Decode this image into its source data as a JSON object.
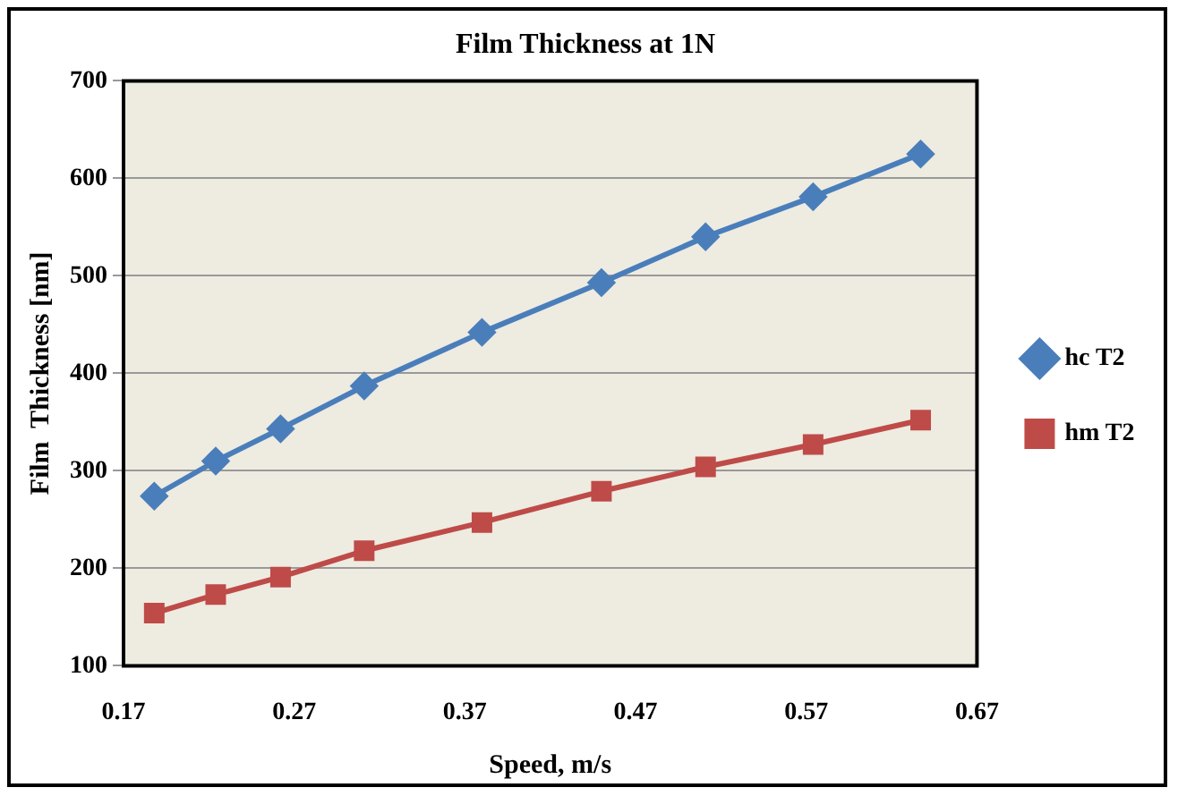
{
  "chart_data": {
    "type": "line",
    "title": "Film Thickness at 1N",
    "xlabel": "Speed, m/s",
    "ylabel": "Film  Thickness [nm]",
    "x": [
      0.188,
      0.224,
      0.262,
      0.311,
      0.38,
      0.45,
      0.511,
      0.574,
      0.637
    ],
    "series": [
      {
        "name": "hc T2",
        "color": "#4a7ebb",
        "marker": "diamond",
        "values": [
          274,
          310,
          343,
          387,
          442,
          493,
          540,
          581,
          625
        ]
      },
      {
        "name": "hm T2",
        "color": "#be4b48",
        "marker": "square",
        "values": [
          154,
          173,
          191,
          218,
          247,
          279,
          304,
          327,
          352
        ]
      }
    ],
    "xlim": [
      0.17,
      0.67
    ],
    "xticks": [
      0.17,
      0.27,
      0.37,
      0.47,
      0.57,
      0.67
    ],
    "ylim": [
      100,
      700
    ],
    "yticks": [
      100,
      200,
      300,
      400,
      500,
      600,
      700
    ],
    "grid": "y",
    "legend": "right"
  }
}
